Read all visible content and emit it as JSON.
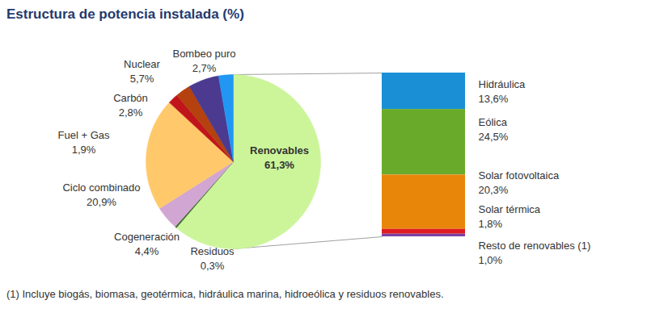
{
  "chart_data": {
    "type": "pie",
    "title": "Estructura de potencia instalada (%)",
    "categories": [
      "Renovables",
      "Residuos",
      "Cogeneración",
      "Ciclo combinado",
      "Fuel + Gas",
      "Carbón",
      "Nuclear",
      "Bombeo puro"
    ],
    "values": [
      61.3,
      0.3,
      4.4,
      20.9,
      1.9,
      2.8,
      5.7,
      2.7
    ],
    "value_labels": [
      "61,3%",
      "0,3%",
      "4,4%",
      "20,9%",
      "1,9%",
      "2,8%",
      "5,7%",
      "2,7%"
    ],
    "colors": [
      "#ccf59a",
      "#3d6b2f",
      "#d2a6d2",
      "#ffc96b",
      "#c0151b",
      "#b5410f",
      "#4b3a8f",
      "#2196f3"
    ],
    "data_labels": true,
    "breakdown": {
      "of": "Renovables",
      "categories": [
        "Hidráulica",
        "Eólica",
        "Solar fotovoltaica",
        "Solar térmica",
        "Resto de renovables (1)"
      ],
      "values": [
        13.6,
        24.5,
        20.3,
        1.8,
        1.0
      ],
      "value_labels": [
        "13,6%",
        "24,5%",
        "20,3%",
        "1,8%",
        "1,0%"
      ],
      "colors": [
        "#1a8fd6",
        "#6aaa2a",
        "#e8860a",
        "#e01b22",
        "#7a3fa0"
      ]
    },
    "footnote": "(1) Incluye biogás, biomasa, geotérmica, hidráulica marina, hidroeólica y residuos renovables."
  }
}
